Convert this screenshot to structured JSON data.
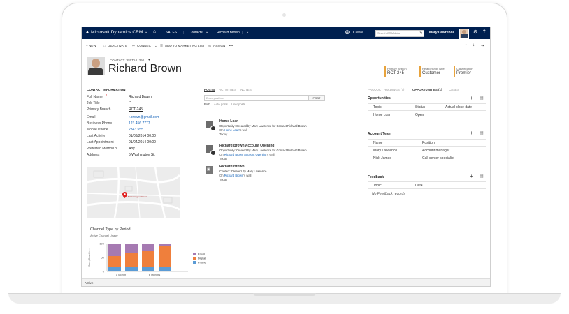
{
  "nav": {
    "app_title": "Microsoft Dynamics CRM",
    "area": "SALES",
    "entity": "Contacts",
    "record": "Richard Brown",
    "create": "Create",
    "search_placeholder": "Search CRM data",
    "user": "Mary Lawrence",
    "help": "?"
  },
  "commands": {
    "new": "+ NEW",
    "deactivate": "DEACTIVATE",
    "connect": "CONNECT",
    "add_marketing": "ADD TO MARKETING LIST",
    "assign": "ASSIGN",
    "more": "•••"
  },
  "header": {
    "form_label": "CONTACT : RETAIL 360",
    "name": "Richard Brown",
    "primary_branch_label": "Primary Branch",
    "primary_branch_value": "RCT-245",
    "relationship_label": "Relationship Type",
    "relationship_value": "Customer",
    "classification_label": "Classification",
    "classification_value": "Premier",
    "accent": "#e8a33c"
  },
  "contact_info": {
    "title": "CONTACT INFORMATION",
    "fields": [
      {
        "label": "Full Name",
        "value": "Richard Brown"
      },
      {
        "label": "Job Title",
        "value": "--"
      },
      {
        "label": "Primary Branch",
        "value": "RCT-245"
      },
      {
        "label": "Email",
        "value": "r.brown@gmail.com"
      },
      {
        "label": "Business Phone",
        "value": "123 456 7777"
      },
      {
        "label": "Mobile Phone",
        "value": "2343 555"
      },
      {
        "label": "Last Activity",
        "value": "01/03/2014 00:00"
      },
      {
        "label": "Last Appointment",
        "value": "01/04/2014 00:00"
      },
      {
        "label": "Preferred Method o",
        "value": "Any"
      },
      {
        "label": "Address",
        "value": "5 Washington St."
      }
    ]
  },
  "map": {
    "pin_label": "5 Washington Street"
  },
  "chart_title": "Channel Type by Period",
  "chart_subtitle": "Active Channel Usage",
  "chart_ylabel": "Sum (Count in...",
  "chart_data": {
    "type": "bar",
    "stacked": true,
    "categories": [
      "1 Month",
      "",
      "6 Months",
      ""
    ],
    "series": [
      {
        "name": "Email",
        "color": "#a67ab2",
        "values": [
          45,
          35,
          25,
          10
        ]
      },
      {
        "name": "Digital",
        "color": "#ef7f3c",
        "values": [
          40,
          50,
          60,
          75
        ]
      },
      {
        "name": "Phone",
        "color": "#5b9bd5",
        "values": [
          15,
          15,
          15,
          15
        ]
      }
    ],
    "y_ticks": [
      "100",
      "50",
      "0"
    ],
    "ylim": [
      0,
      100
    ],
    "legend": "right"
  },
  "posts": {
    "tabs": [
      "POSTS",
      "ACTIVITIES",
      "NOTES"
    ],
    "placeholder": "Enter post text",
    "post_button": "POST",
    "filters": [
      "Both",
      "Auto posts",
      "User posts"
    ],
    "items": [
      {
        "title": "Home Loan",
        "line1": "Opportunity: Created by Mary Lawrence for Contact Richard Brown",
        "on_prefix": "On ",
        "on_link": "Home Loan",
        "on_suffix": "'s wall",
        "time": "Today"
      },
      {
        "title": "Richard Brown Account Opening",
        "line1": "Opportunity: Created by Mary Lawrence for Contact Richard Brown",
        "on_prefix": "On ",
        "on_link": "Richard Brown Account Opening",
        "on_suffix": "'s wall",
        "time": "Today"
      },
      {
        "title": "Richard Brown",
        "line1": "Contact: Created By Mary Lawrence",
        "on_prefix": "On ",
        "on_link": "Richard Brown",
        "on_suffix": "'s wall",
        "time": "Today"
      }
    ]
  },
  "right": {
    "tabs": [
      "PRODUCT HOLDINGS (7)",
      "OPPORTUNITIES (1)",
      "CASES"
    ],
    "opportunities": {
      "title": "Opportunities",
      "cols": [
        "Topic",
        "Status",
        "Actual close date"
      ],
      "rows": [
        [
          "Home Loan",
          "Open",
          ""
        ]
      ]
    },
    "account_team": {
      "title": "Account Team",
      "cols": [
        "Name",
        "Position"
      ],
      "rows": [
        [
          "Mary Lawrence",
          "Account manager"
        ],
        [
          "Nick James",
          "Call center specialist"
        ]
      ]
    },
    "feedback": {
      "title": "Feedback",
      "cols": [
        "Topic",
        "Date"
      ],
      "empty": "No Feedback records"
    }
  },
  "status_text": "Active"
}
